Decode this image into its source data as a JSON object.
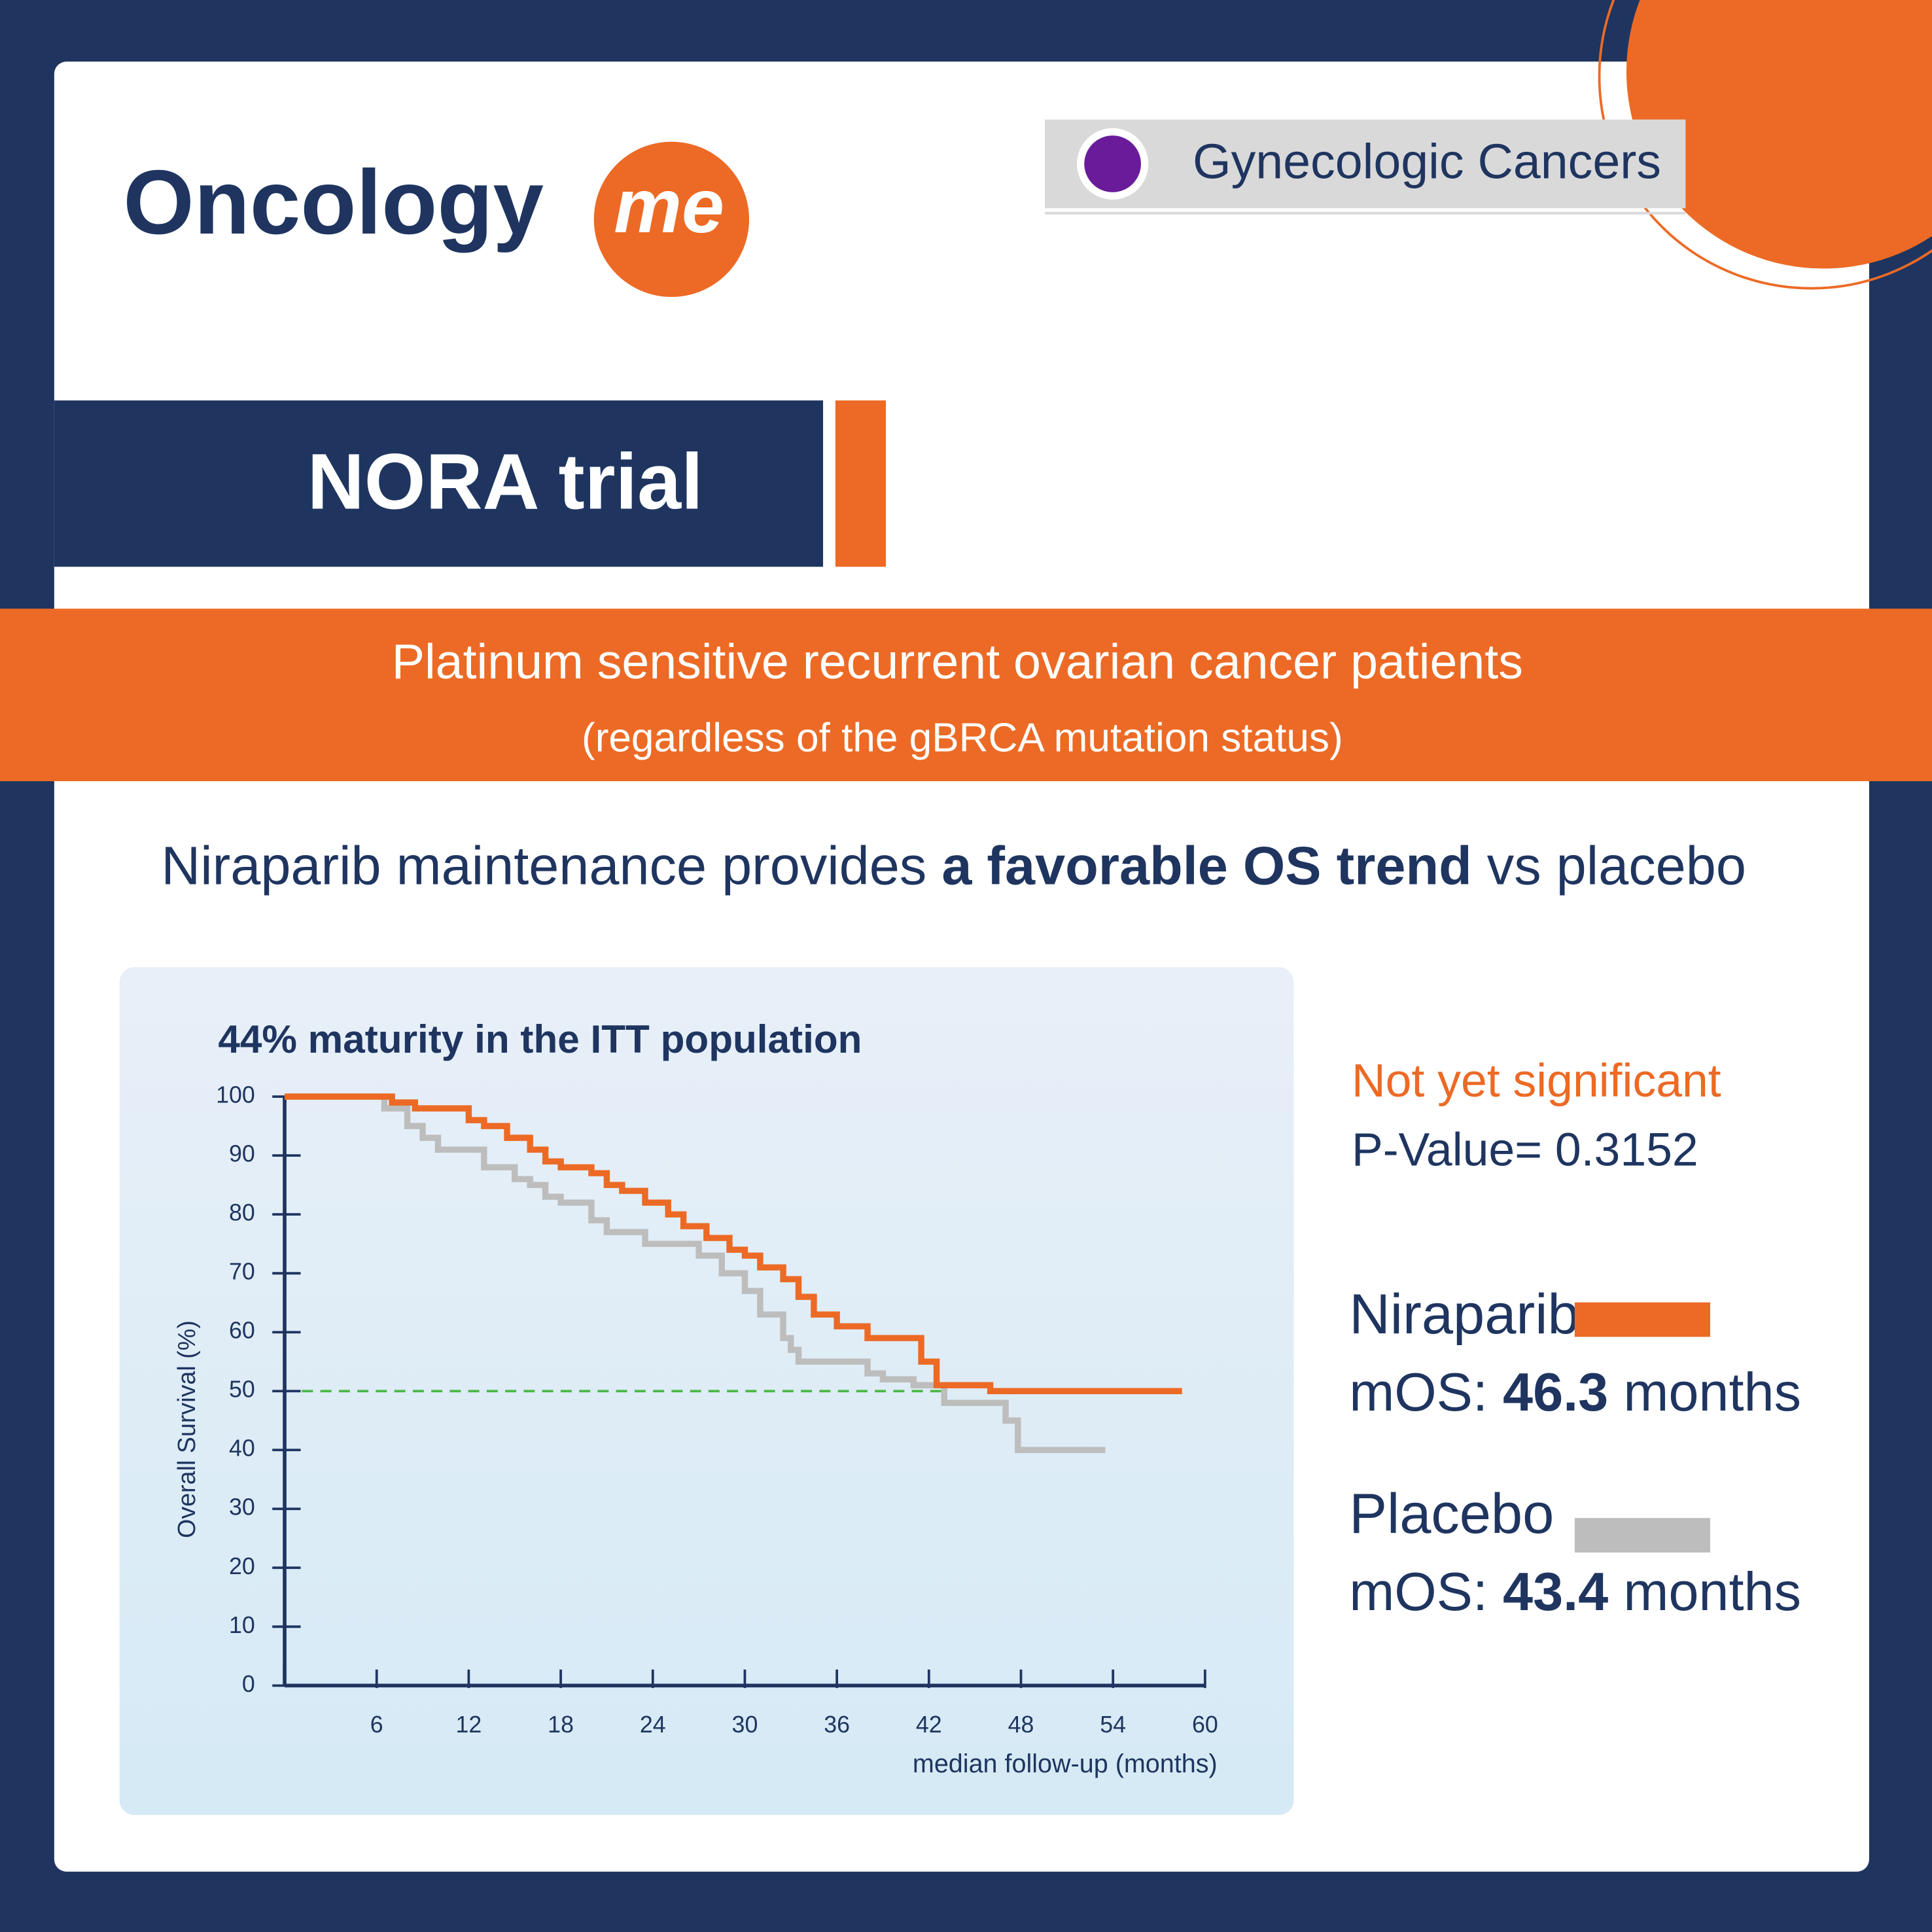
{
  "header": {
    "logo_main": "Oncology",
    "logo_accent": "me",
    "category": "Gynecologic Cancers"
  },
  "trial": "NORA trial",
  "population": {
    "line1": "Platinum sensitive recurrent ovarian cancer patients",
    "line2": "(regardless of the gBRCA mutation status)"
  },
  "headline": {
    "start": "Niraparib maintenance provides",
    "emphasis": "a favorable OS trend",
    "end": "vs placebo"
  },
  "chart_data": {
    "type": "line",
    "title": "44% maturity in the ITT population",
    "x_label": "median follow-up (months)",
    "y_label": "Overall Survival (%)",
    "xlim": [
      0,
      60
    ],
    "xticks": [
      6,
      12,
      18,
      24,
      30,
      36,
      42,
      48,
      54,
      60
    ],
    "ylim": [
      0,
      100
    ],
    "yticks": [
      0,
      10,
      20,
      30,
      40,
      50,
      60,
      70,
      80,
      90,
      100
    ],
    "series": [
      {
        "name": "Niraparib",
        "color": "#ec6a25",
        "x": [
          0,
          7,
          7,
          8.5,
          8.5,
          12,
          12,
          13,
          13,
          14.5,
          14.5,
          16,
          16,
          17,
          17,
          18,
          18,
          20,
          20,
          21,
          21,
          22,
          22,
          23.5,
          23.5,
          25,
          25,
          26,
          26,
          27.5,
          27.5,
          29,
          29,
          30,
          30,
          31,
          31,
          32.5,
          32.5,
          33.5,
          33.5,
          34.5,
          34.5,
          36,
          36,
          38,
          38,
          41.5,
          41.5,
          42.5,
          42.5,
          46,
          46,
          58.5
        ],
        "values": [
          100,
          100,
          99,
          99,
          98,
          98,
          96,
          96,
          95,
          95,
          93,
          93,
          91,
          91,
          89,
          89,
          88,
          88,
          87,
          87,
          85,
          85,
          84,
          84,
          82,
          82,
          80,
          80,
          78,
          78,
          76,
          76,
          74,
          74,
          73,
          73,
          71,
          71,
          69,
          69,
          66,
          66,
          63,
          63,
          61,
          61,
          59,
          59,
          55,
          55,
          51,
          51,
          50,
          50
        ]
      },
      {
        "name": "Placebo",
        "color": "#bdbdbd",
        "x": [
          0,
          6.5,
          6.5,
          8,
          8,
          9,
          9,
          10,
          10,
          13,
          13,
          15,
          15,
          16,
          16,
          17,
          17,
          18,
          18,
          20,
          20,
          21,
          21,
          23.5,
          23.5,
          27,
          27,
          28.5,
          28.5,
          30,
          30,
          31,
          31,
          32.5,
          32.5,
          33,
          33,
          33.5,
          33.5,
          38,
          38,
          39,
          39,
          41,
          41,
          43,
          43,
          47,
          47,
          47.8,
          47.8,
          53.5
        ],
        "values": [
          100,
          100,
          98,
          98,
          95,
          95,
          93,
          93,
          91,
          91,
          88,
          88,
          86,
          86,
          85,
          85,
          83,
          83,
          82,
          82,
          79,
          79,
          77,
          77,
          75,
          75,
          73,
          73,
          70,
          70,
          67,
          67,
          63,
          63,
          59,
          59,
          57,
          57,
          55,
          55,
          53,
          53,
          52,
          52,
          51,
          51,
          48,
          48,
          45,
          45,
          40,
          40
        ]
      }
    ],
    "reference_line": {
      "y": 50,
      "x": [
        0,
        43
      ],
      "color": "#4cb848"
    }
  },
  "summary": {
    "significance": "Not yet significant",
    "p_value": "P-Value= 0.3152"
  },
  "median_os": [
    {
      "label": "mOS:",
      "value": 46.3,
      "unit": "months"
    },
    {
      "label": "mOS:",
      "value": 43.4,
      "unit": "months"
    }
  ]
}
